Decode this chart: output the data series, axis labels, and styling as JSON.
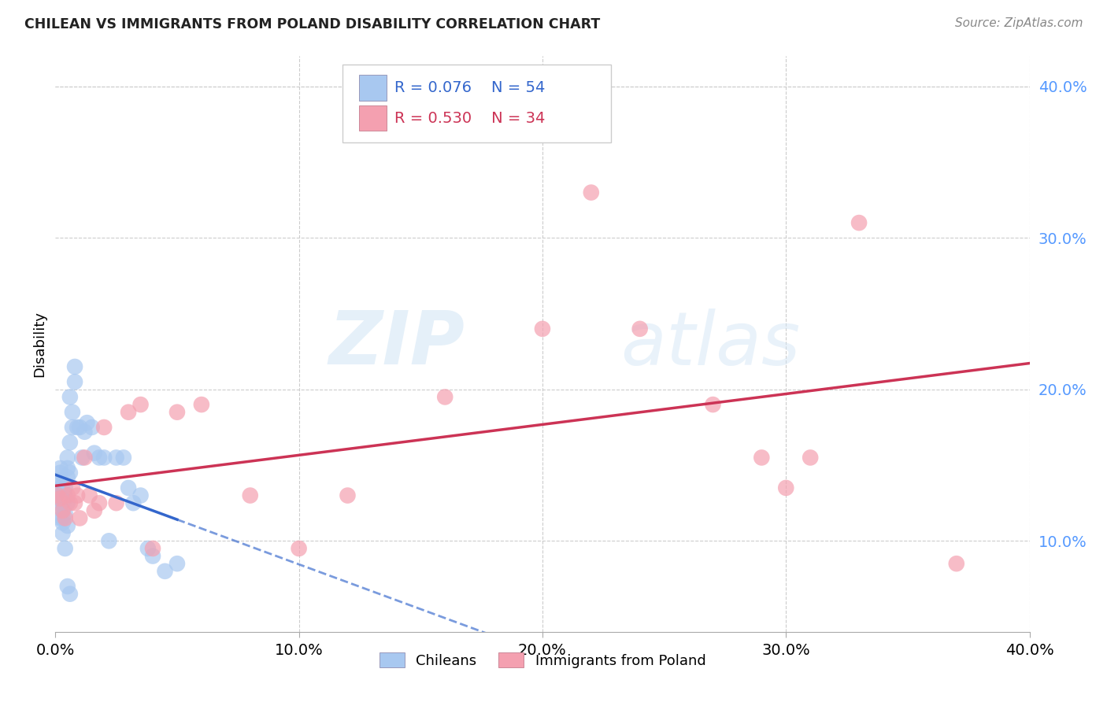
{
  "title": "CHILEAN VS IMMIGRANTS FROM POLAND DISABILITY CORRELATION CHART",
  "source": "Source: ZipAtlas.com",
  "ylabel": "Disability",
  "xlim": [
    0.0,
    0.4
  ],
  "ylim": [
    0.04,
    0.42
  ],
  "yticks": [
    0.1,
    0.2,
    0.3,
    0.4
  ],
  "xticks": [
    0.0,
    0.1,
    0.2,
    0.3,
    0.4
  ],
  "xtick_labels": [
    "0.0%",
    "10.0%",
    "20.0%",
    "30.0%",
    "40.0%"
  ],
  "ytick_labels": [
    "10.0%",
    "20.0%",
    "30.0%",
    "40.0%"
  ],
  "legend_labels": [
    "Chileans",
    "Immigrants from Poland"
  ],
  "chilean_color": "#A8C8F0",
  "poland_color": "#F4A0B0",
  "chilean_R": 0.076,
  "chilean_N": 54,
  "poland_R": 0.53,
  "poland_N": 34,
  "trendline_chilean_color": "#3366CC",
  "trendline_poland_color": "#CC3355",
  "watermark": "ZIPatlas",
  "background_color": "#FFFFFF",
  "grid_color": "#CCCCCC",
  "chilean_x": [
    0.001,
    0.001,
    0.001,
    0.002,
    0.002,
    0.002,
    0.002,
    0.002,
    0.003,
    0.003,
    0.003,
    0.003,
    0.003,
    0.004,
    0.004,
    0.004,
    0.004,
    0.005,
    0.005,
    0.005,
    0.005,
    0.005,
    0.006,
    0.006,
    0.006,
    0.007,
    0.007,
    0.008,
    0.008,
    0.009,
    0.01,
    0.011,
    0.012,
    0.013,
    0.015,
    0.016,
    0.018,
    0.02,
    0.022,
    0.025,
    0.028,
    0.03,
    0.032,
    0.035,
    0.038,
    0.04,
    0.045,
    0.05,
    0.002,
    0.003,
    0.003,
    0.004,
    0.005,
    0.006
  ],
  "chilean_y": [
    0.13,
    0.125,
    0.128,
    0.14,
    0.135,
    0.145,
    0.148,
    0.13,
    0.133,
    0.138,
    0.12,
    0.115,
    0.125,
    0.128,
    0.135,
    0.13,
    0.118,
    0.142,
    0.148,
    0.155,
    0.125,
    0.11,
    0.195,
    0.165,
    0.145,
    0.175,
    0.185,
    0.205,
    0.215,
    0.175,
    0.175,
    0.155,
    0.172,
    0.178,
    0.175,
    0.158,
    0.155,
    0.155,
    0.1,
    0.155,
    0.155,
    0.135,
    0.125,
    0.13,
    0.095,
    0.09,
    0.08,
    0.085,
    0.115,
    0.112,
    0.105,
    0.095,
    0.07,
    0.065
  ],
  "poland_x": [
    0.001,
    0.002,
    0.003,
    0.004,
    0.005,
    0.006,
    0.007,
    0.008,
    0.009,
    0.01,
    0.012,
    0.014,
    0.016,
    0.018,
    0.02,
    0.025,
    0.03,
    0.035,
    0.04,
    0.05,
    0.06,
    0.08,
    0.1,
    0.12,
    0.16,
    0.2,
    0.22,
    0.24,
    0.27,
    0.29,
    0.3,
    0.31,
    0.33,
    0.37
  ],
  "poland_y": [
    0.13,
    0.128,
    0.12,
    0.115,
    0.13,
    0.125,
    0.135,
    0.125,
    0.13,
    0.115,
    0.155,
    0.13,
    0.12,
    0.125,
    0.175,
    0.125,
    0.185,
    0.19,
    0.095,
    0.185,
    0.19,
    0.13,
    0.095,
    0.13,
    0.195,
    0.24,
    0.33,
    0.24,
    0.19,
    0.155,
    0.135,
    0.155,
    0.31,
    0.085
  ],
  "chilean_trendline_xstart": 0.0,
  "chilean_trendline_xend_solid": 0.05,
  "chilean_trendline_xend_dash": 0.4,
  "poland_trendline_xstart": 0.0,
  "poland_trendline_xend": 0.4
}
